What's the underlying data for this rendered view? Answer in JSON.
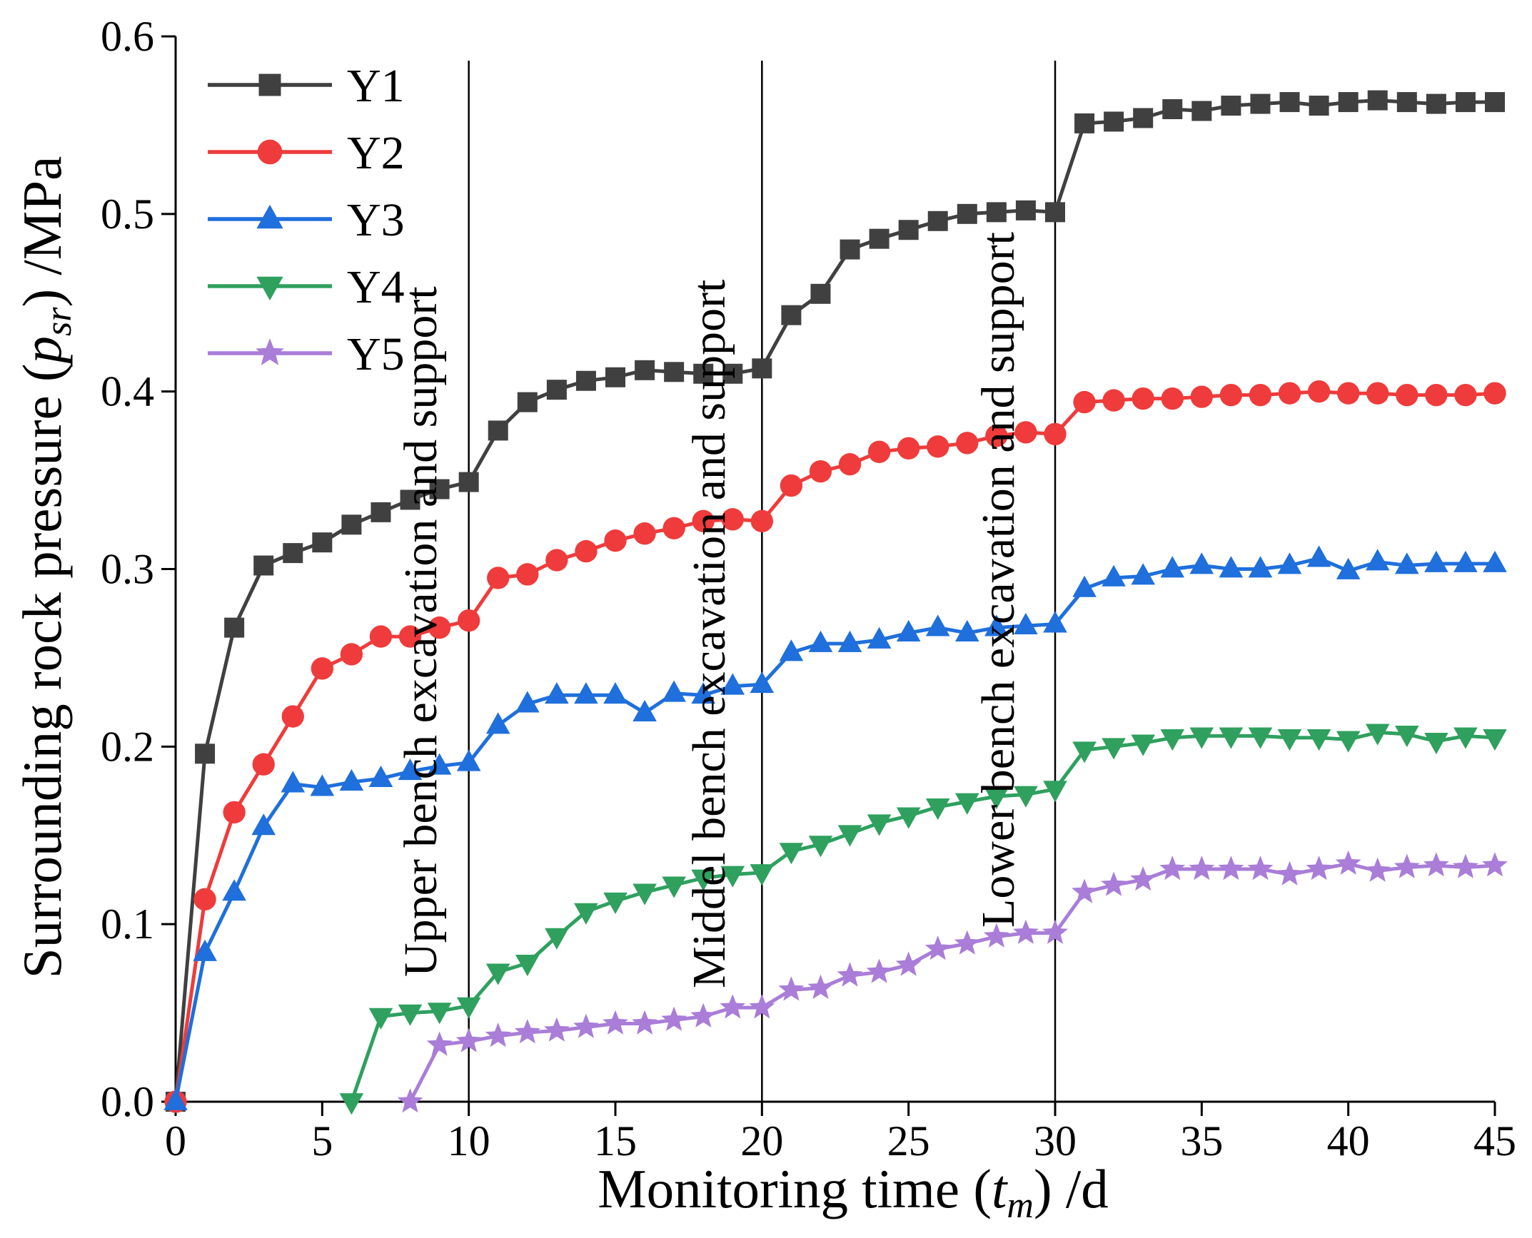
{
  "chart_data": {
    "type": "line",
    "title": "",
    "xlabel": {
      "text": "Monitoring time (",
      "var": "t",
      "sub": "m",
      "unit": ") /d"
    },
    "ylabel": {
      "text": "Surrounding rock pressure (",
      "var": "p",
      "sub": "sr",
      "unit": ") /MPa"
    },
    "xlim": [
      0,
      45
    ],
    "ylim": [
      0,
      0.6
    ],
    "x_ticks": [
      "0",
      "5",
      "10",
      "15",
      "20",
      "25",
      "30",
      "35",
      "40",
      "45"
    ],
    "y_ticks": [
      "0.0",
      "0.1",
      "0.2",
      "0.3",
      "0.4",
      "0.5",
      "0.6"
    ],
    "grid": false,
    "legend": "top-left",
    "x": [
      0,
      1,
      2,
      3,
      4,
      5,
      6,
      7,
      8,
      9,
      10,
      11,
      12,
      13,
      14,
      15,
      16,
      17,
      18,
      19,
      20,
      21,
      22,
      23,
      24,
      25,
      26,
      27,
      28,
      29,
      30,
      31,
      32,
      33,
      34,
      35,
      36,
      37,
      38,
      39,
      40,
      41,
      42,
      43,
      44,
      45
    ],
    "series": [
      {
        "name": "Y1",
        "color": "#404040",
        "marker": "square",
        "values": [
          0.0,
          0.196,
          0.267,
          0.302,
          0.309,
          0.315,
          0.325,
          0.332,
          0.339,
          0.345,
          0.349,
          0.378,
          0.394,
          0.401,
          0.406,
          0.408,
          0.412,
          0.411,
          0.41,
          0.41,
          0.413,
          0.443,
          0.455,
          0.48,
          0.486,
          0.491,
          0.496,
          0.5,
          0.501,
          0.502,
          0.501,
          0.551,
          0.552,
          0.554,
          0.559,
          0.558,
          0.561,
          0.562,
          0.563,
          0.561,
          0.563,
          0.564,
          0.563,
          0.562,
          0.563,
          0.563
        ]
      },
      {
        "name": "Y2",
        "color": "#ef3b3b",
        "marker": "circle",
        "values": [
          0.0,
          0.114,
          0.163,
          0.19,
          0.217,
          0.244,
          0.252,
          0.262,
          0.262,
          0.267,
          0.271,
          0.295,
          0.297,
          0.305,
          0.31,
          0.316,
          0.32,
          0.323,
          0.327,
          0.328,
          0.327,
          0.347,
          0.355,
          0.359,
          0.366,
          0.368,
          0.369,
          0.371,
          0.375,
          0.377,
          0.376,
          0.394,
          0.395,
          0.396,
          0.396,
          0.397,
          0.398,
          0.398,
          0.399,
          0.4,
          0.399,
          0.399,
          0.398,
          0.398,
          0.398,
          0.399
        ]
      },
      {
        "name": "Y3",
        "color": "#1f6fdc",
        "marker": "triangle-up",
        "values": [
          0.0,
          0.084,
          0.118,
          0.155,
          0.179,
          0.177,
          0.18,
          0.182,
          0.186,
          0.189,
          0.191,
          0.212,
          0.224,
          0.229,
          0.229,
          0.229,
          0.219,
          0.23,
          0.229,
          0.234,
          0.235,
          0.253,
          0.258,
          0.258,
          0.26,
          0.264,
          0.267,
          0.264,
          0.267,
          0.268,
          0.269,
          0.289,
          0.295,
          0.296,
          0.3,
          0.302,
          0.3,
          0.3,
          0.302,
          0.306,
          0.299,
          0.304,
          0.302,
          0.303,
          0.303,
          0.303
        ]
      },
      {
        "name": "Y4",
        "color": "#2fa05e",
        "marker": "triangle-down",
        "values": [
          null,
          null,
          null,
          null,
          null,
          null,
          0.0,
          0.048,
          0.05,
          0.051,
          0.054,
          0.073,
          0.078,
          0.093,
          0.107,
          0.113,
          0.118,
          0.122,
          0.126,
          0.128,
          0.129,
          0.141,
          0.145,
          0.151,
          0.157,
          0.161,
          0.166,
          0.169,
          0.172,
          0.173,
          0.176,
          0.198,
          0.2,
          0.202,
          0.205,
          0.206,
          0.206,
          0.206,
          0.205,
          0.205,
          0.204,
          0.208,
          0.207,
          0.203,
          0.206,
          0.205
        ]
      },
      {
        "name": "Y5",
        "color": "#a97dd8",
        "marker": "star",
        "values": [
          null,
          null,
          null,
          null,
          null,
          null,
          null,
          null,
          0.0,
          0.032,
          0.034,
          0.037,
          0.039,
          0.04,
          0.042,
          0.044,
          0.044,
          0.046,
          0.048,
          0.053,
          0.053,
          0.063,
          0.064,
          0.071,
          0.073,
          0.077,
          0.086,
          0.089,
          0.093,
          0.095,
          0.095,
          0.118,
          0.122,
          0.125,
          0.131,
          0.131,
          0.131,
          0.131,
          0.128,
          0.131,
          0.134,
          0.13,
          0.132,
          0.133,
          0.132,
          0.133
        ]
      }
    ],
    "stages": [
      {
        "x": 10,
        "label": "Upper bench excavation and support"
      },
      {
        "x": 20,
        "label": "Middel bench excavation and support"
      },
      {
        "x": 30,
        "label": "Lower bench excavation and support"
      }
    ]
  }
}
